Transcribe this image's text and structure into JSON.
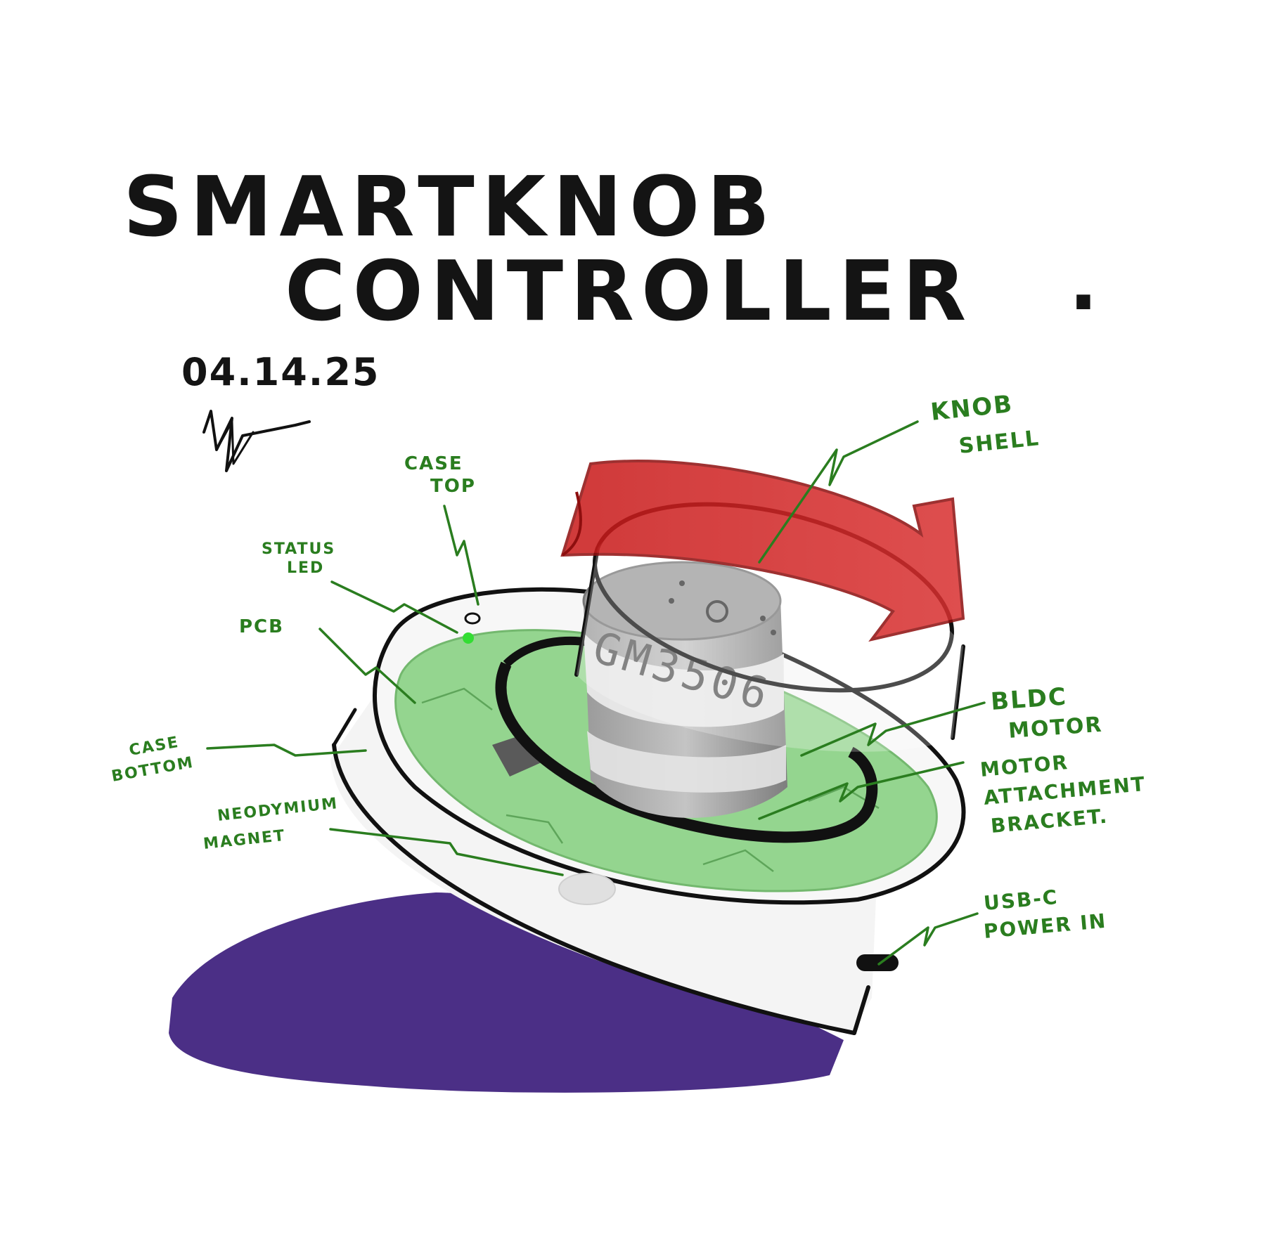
{
  "title": {
    "line1": "SMARTKNOB",
    "line2": "CONTROLLER",
    "period": "."
  },
  "date": "04.14.25",
  "motor_label": "GM3506",
  "callouts": {
    "case_top": [
      "CASE",
      "TOP"
    ],
    "status_led": [
      "STATUS",
      "LED"
    ],
    "pcb": [
      "PCB"
    ],
    "case_bottom": [
      "CASE",
      "BOTTOM"
    ],
    "neodymium_magnet": [
      "NEODYMIUM",
      "MAGNET"
    ],
    "knob_shell": [
      "KNOB",
      "SHELL"
    ],
    "bldc_motor": [
      "BLDC",
      "MOTOR"
    ],
    "motor_attachment_bracket": [
      "MOTOR",
      "ATTACHMENT",
      "BRACKET."
    ],
    "usb_c_power_in": [
      "USB-C",
      "POWER IN"
    ]
  },
  "colors": {
    "ink": "#111111",
    "callout_green": "#2a7d1f",
    "pcb_green": "#8fd48a",
    "arrow_red": "#cc1f1f",
    "shadow_purple": "#4b2f86",
    "motor_gray": "#8a8a8a",
    "led_green": "#33dd33"
  },
  "icons": {
    "signature": "signature-mark",
    "rotation_arrow": "rotation-arrow"
  }
}
